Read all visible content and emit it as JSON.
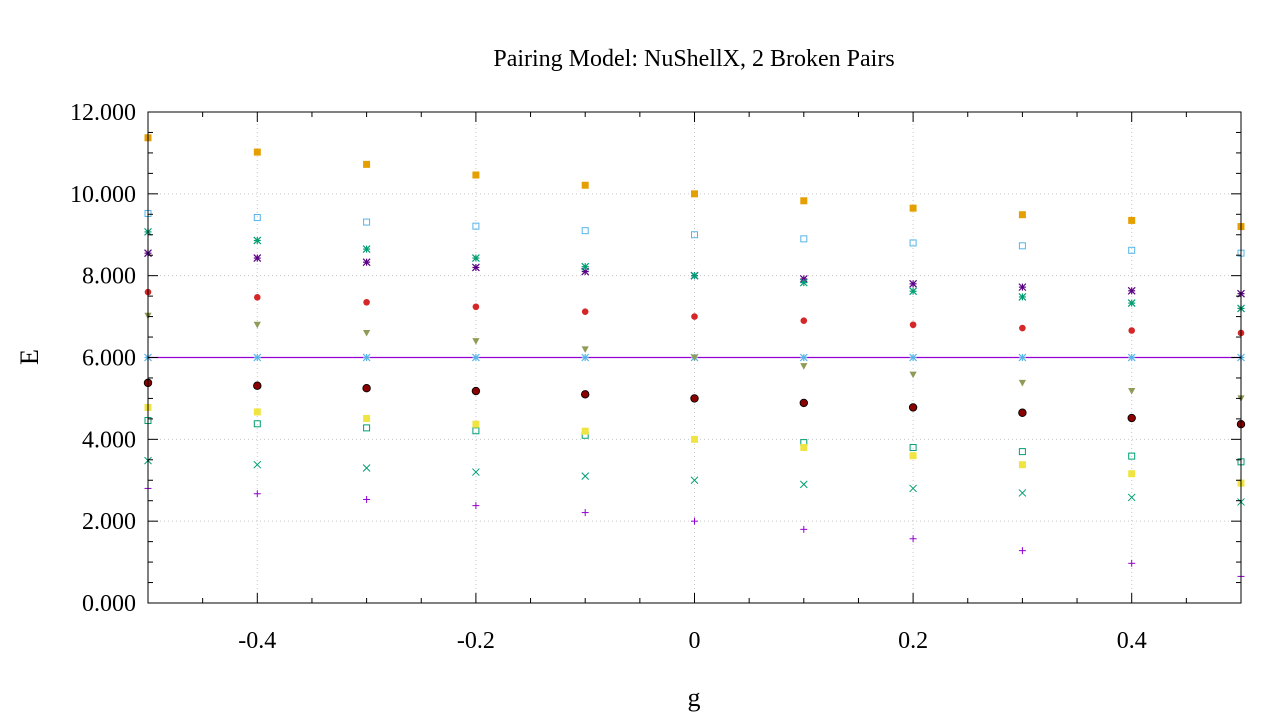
{
  "chart_data": {
    "type": "scatter",
    "title": "Pairing Model: NuShellX, 2 Broken Pairs",
    "xlabel": "g",
    "ylabel": "E",
    "xlim": [
      -0.5,
      0.5
    ],
    "ylim": [
      0,
      12
    ],
    "grid": true,
    "legend": "none",
    "x_ticks": [
      {
        "value": -0.4,
        "label": "-0.4"
      },
      {
        "value": -0.2,
        "label": "-0.2"
      },
      {
        "value": 0,
        "label": "0"
      },
      {
        "value": 0.2,
        "label": "0.2"
      },
      {
        "value": 0.4,
        "label": "0.4"
      }
    ],
    "y_ticks": [
      {
        "value": 0,
        "label": "0.000"
      },
      {
        "value": 2,
        "label": "2.000"
      },
      {
        "value": 4,
        "label": "4.000"
      },
      {
        "value": 6,
        "label": "6.000"
      },
      {
        "value": 8,
        "label": "8.000"
      },
      {
        "value": 10,
        "label": "10.000"
      },
      {
        "value": 12,
        "label": "12.000"
      }
    ],
    "x": [
      -0.5,
      -0.4,
      -0.3,
      -0.2,
      -0.1,
      0,
      0.1,
      0.2,
      0.3,
      0.4,
      0.5
    ],
    "series": [
      {
        "marker": "plus",
        "color": "#9400d3",
        "values": [
          2.8,
          2.67,
          2.53,
          2.38,
          2.21,
          2.0,
          1.8,
          1.57,
          1.28,
          0.97,
          0.65
        ]
      },
      {
        "marker": "cross",
        "color": "#009e73",
        "values": [
          3.48,
          3.38,
          3.3,
          3.2,
          3.1,
          3.0,
          2.9,
          2.8,
          2.69,
          2.58,
          2.47
        ]
      },
      {
        "marker": "star",
        "color": "#56b4e9",
        "values": [
          6.0,
          6.0,
          6.0,
          6.0,
          6.0,
          6.0,
          6.0,
          6.0,
          6.0,
          6.0,
          6.0
        ]
      },
      {
        "marker": "square-open",
        "color": "#009e73",
        "values": [
          4.46,
          4.38,
          4.28,
          4.21,
          4.1,
          null,
          3.92,
          3.8,
          3.7,
          3.59,
          3.45
        ]
      },
      {
        "marker": "square-filled",
        "color": "#f0e442",
        "values": [
          4.78,
          4.67,
          4.51,
          4.37,
          4.2,
          4.0,
          3.8,
          3.6,
          3.38,
          3.16,
          2.93
        ]
      },
      {
        "marker": "circle-open",
        "color": "#000000",
        "values": [
          5.38,
          5.31,
          5.25,
          5.18,
          5.1,
          5.0,
          4.89,
          4.78,
          4.65,
          4.52,
          4.37
        ]
      },
      {
        "marker": "circle-filled",
        "color": "#8b0000",
        "values": [
          5.38,
          5.31,
          5.25,
          5.18,
          5.1,
          5.0,
          4.89,
          4.78,
          4.65,
          4.52,
          4.37
        ]
      },
      {
        "marker": "triangle-down-filled",
        "color": "#8f9b56",
        "values": [
          7.02,
          6.8,
          6.6,
          6.4,
          6.2,
          6.0,
          5.79,
          5.58,
          5.38,
          5.18,
          5.0
        ]
      },
      {
        "marker": "circle-filled",
        "color": "#d62728",
        "values": [
          7.6,
          7.47,
          7.35,
          7.24,
          7.12,
          7.0,
          6.9,
          6.8,
          6.72,
          6.66,
          6.6
        ]
      },
      {
        "marker": "star",
        "color": "#5b0085",
        "values": [
          8.55,
          8.43,
          8.33,
          8.2,
          8.1,
          8.0,
          7.92,
          7.8,
          7.72,
          7.63,
          7.56
        ]
      },
      {
        "marker": "star",
        "color": "#009e73",
        "values": [
          9.07,
          8.86,
          8.65,
          8.43,
          8.22,
          8.0,
          7.83,
          7.62,
          7.48,
          7.33,
          7.2
        ]
      },
      {
        "marker": "square-open",
        "color": "#56b4e9",
        "values": [
          9.52,
          9.42,
          9.31,
          9.21,
          9.1,
          9.0,
          8.9,
          8.8,
          8.73,
          8.62,
          8.55
        ]
      },
      {
        "marker": "square-filled",
        "color": "#e69f00",
        "values": [
          11.37,
          11.02,
          10.72,
          10.46,
          10.21,
          10.0,
          9.83,
          9.65,
          9.49,
          9.35,
          9.2
        ]
      }
    ],
    "reference_line": {
      "y": 6.0,
      "color": "#9400d3"
    }
  }
}
